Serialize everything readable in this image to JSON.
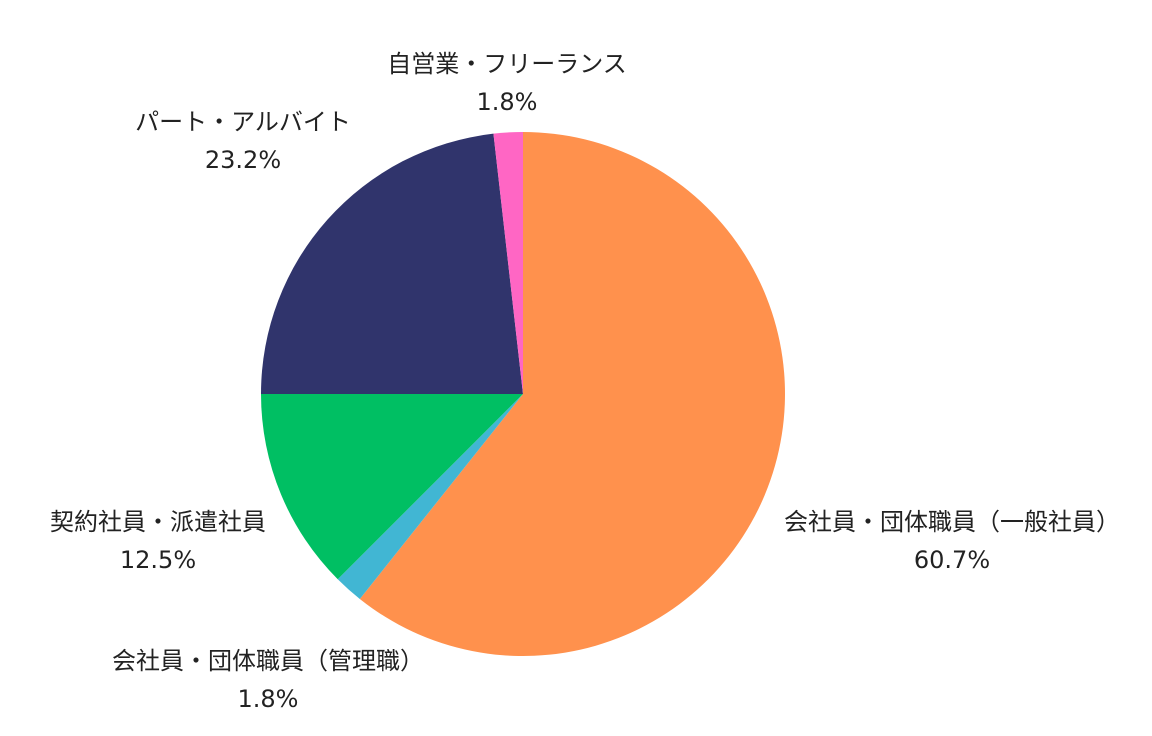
{
  "chart_data": {
    "type": "pie",
    "title": "",
    "unit": "%",
    "slices": [
      {
        "label": "会社員・団体職員（一般社員）",
        "value": 60.7,
        "value_label": "60.7%",
        "color": "#ff914d"
      },
      {
        "label": "会社員・団体職員（管理職）",
        "value": 1.8,
        "value_label": "1.8%",
        "color": "#41b6d3"
      },
      {
        "label": "契約社員・派遣社員",
        "value": 12.5,
        "value_label": "12.5%",
        "color": "#00bf63"
      },
      {
        "label": "パート・アルバイト",
        "value": 23.2,
        "value_label": "23.2%",
        "color": "#30346c"
      },
      {
        "label": "自営業・フリーランス",
        "value": 1.8,
        "value_label": "1.8%",
        "color": "#ff66c4"
      }
    ],
    "start_angle": "12 o'clock",
    "direction": "clockwise",
    "legend": "none"
  }
}
